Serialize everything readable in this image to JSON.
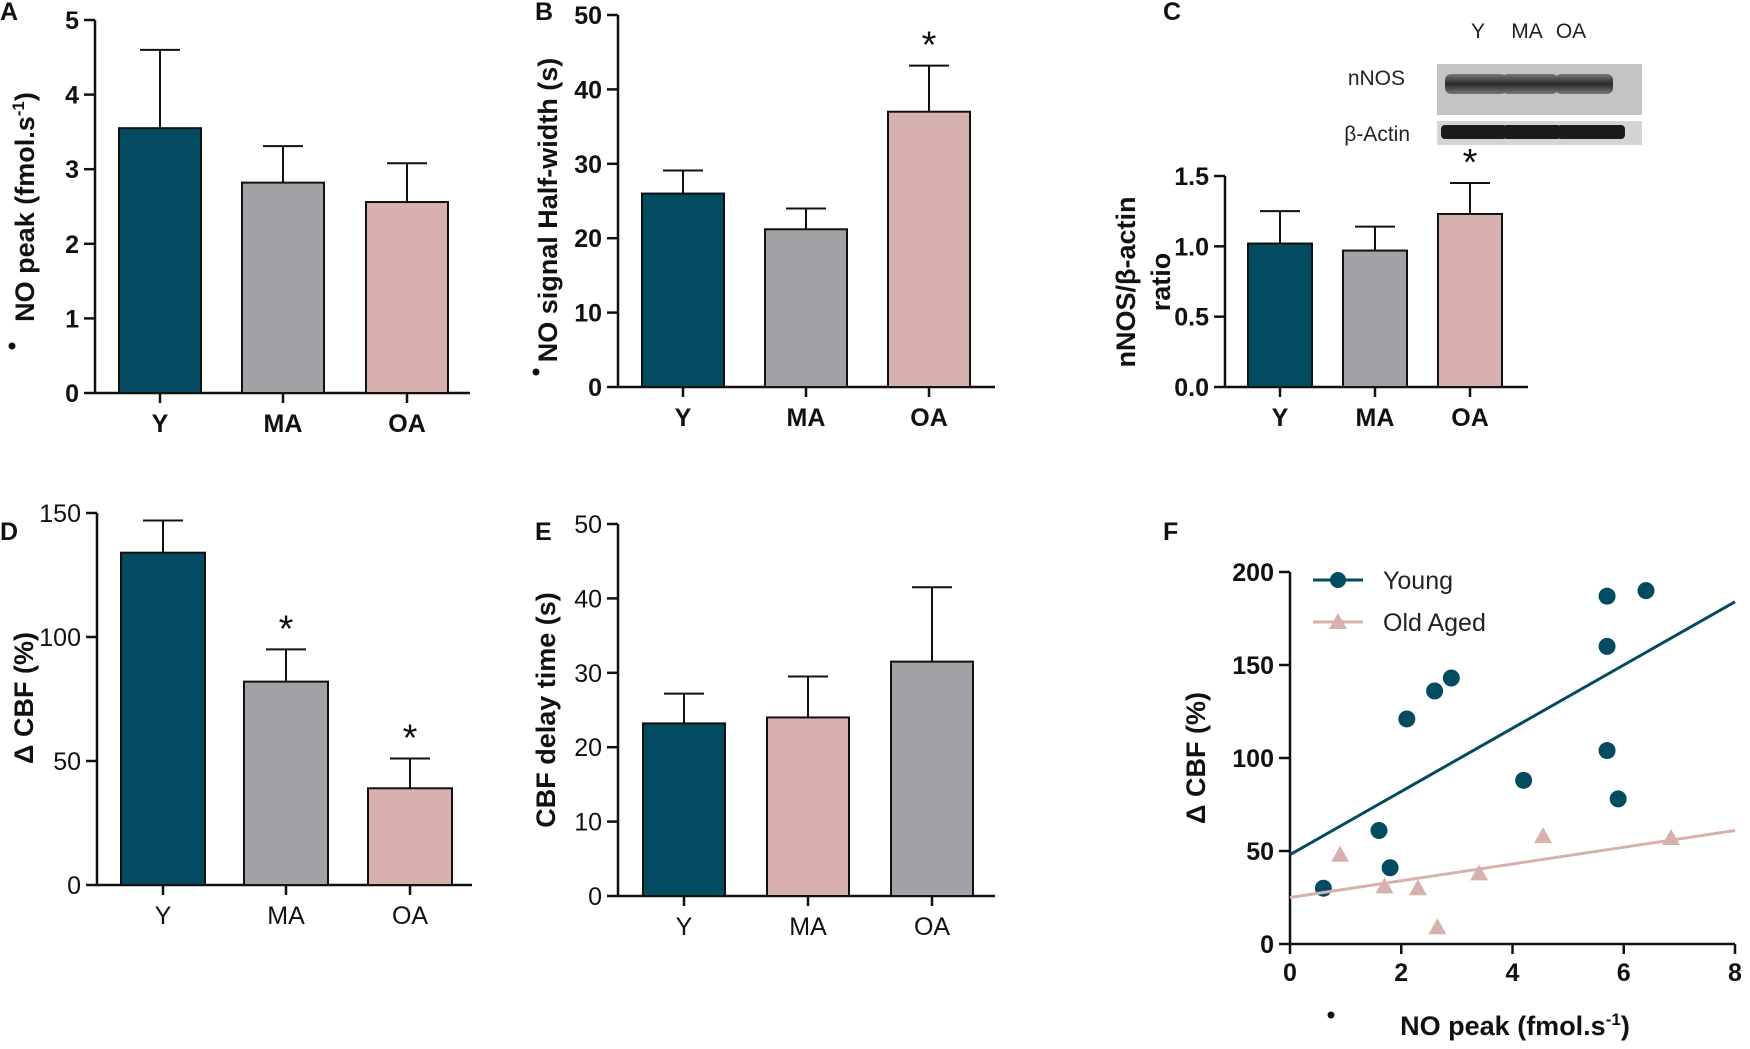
{
  "colors": {
    "young": "#034b61",
    "middle": "#a2a2a6",
    "old": "#d8b0ae",
    "axis": "#111111"
  },
  "chart_data": [
    {
      "panel": "A",
      "type": "bar",
      "ylabel": "NO peak (fmol.s",
      "ylabel_sup": "-1",
      "ylabel_end": ")",
      "ylim": [
        0,
        5
      ],
      "yticks": [
        "0",
        "1",
        "2",
        "3",
        "4",
        "5"
      ],
      "categories": [
        "Y",
        "MA",
        "OA"
      ],
      "values": [
        3.55,
        2.82,
        2.56
      ],
      "errors": [
        1.05,
        0.49,
        0.52
      ],
      "colorKeys": [
        "young",
        "middle",
        "old"
      ],
      "stars": [
        false,
        false,
        false
      ]
    },
    {
      "panel": "B",
      "type": "bar",
      "ylabel": "NO signal Half-width (s)",
      "ylim": [
        0,
        50
      ],
      "yticks": [
        "0",
        "10",
        "20",
        "30",
        "40",
        "50"
      ],
      "categories": [
        "Y",
        "MA",
        "OA"
      ],
      "values": [
        26,
        21.2,
        37
      ],
      "errors": [
        3.1,
        2.8,
        6.2
      ],
      "colorKeys": [
        "young",
        "middle",
        "old"
      ],
      "stars": [
        false,
        false,
        true
      ],
      "star_text": "*"
    },
    {
      "panel": "C",
      "type": "bar",
      "ylabel_line1": "nNOS/β-actin",
      "ylabel_line2": "ratio",
      "ylim": [
        0,
        1.5
      ],
      "yticks": [
        "0.0",
        "0.5",
        "1.0",
        "1.5"
      ],
      "categories": [
        "Y",
        "MA",
        "OA"
      ],
      "values": [
        1.02,
        0.97,
        1.23
      ],
      "errors": [
        0.23,
        0.17,
        0.22
      ],
      "colorKeys": [
        "young",
        "middle",
        "old"
      ],
      "stars": [
        false,
        false,
        true
      ],
      "star_text": "*",
      "blot": {
        "lanes": [
          "Y",
          "MA",
          "OA"
        ],
        "rows": [
          "nNOS",
          "β-Actin"
        ]
      }
    },
    {
      "panel": "D",
      "type": "bar",
      "ylabel": "Δ CBF (%)",
      "ylim": [
        0,
        150
      ],
      "yticks": [
        "0",
        "50",
        "100",
        "150"
      ],
      "categories": [
        "Y",
        "MA",
        "OA"
      ],
      "values": [
        134,
        82,
        39
      ],
      "errors": [
        13,
        13,
        12
      ],
      "colorKeys": [
        "young",
        "middle",
        "old"
      ],
      "stars": [
        false,
        true,
        true
      ],
      "star_text": "*"
    },
    {
      "panel": "E",
      "type": "bar",
      "ylabel": "CBF delay time (s)",
      "ylim": [
        0,
        50
      ],
      "yticks": [
        "0",
        "10",
        "20",
        "30",
        "40",
        "50"
      ],
      "categories": [
        "Y",
        "MA",
        "OA"
      ],
      "values": [
        23.2,
        24,
        31.5
      ],
      "errors": [
        4,
        5.5,
        10
      ],
      "colorKeys": [
        "young",
        "old",
        "middle"
      ],
      "stars": [
        false,
        false,
        false
      ]
    },
    {
      "panel": "F",
      "type": "scatter",
      "xlabel": "NO peak (fmol.s",
      "xlabel_sup": "-1",
      "xlabel_end": ")",
      "ylabel": "Δ CBF (%)",
      "xlim": [
        0,
        8
      ],
      "ylim": [
        0,
        200
      ],
      "xticks": [
        "0",
        "2",
        "4",
        "6",
        "8"
      ],
      "yticks": [
        "0",
        "50",
        "100",
        "150",
        "200"
      ],
      "series": [
        {
          "name": "Young",
          "colorKey": "young",
          "marker": "circle",
          "points": [
            [
              0.6,
              30
            ],
            [
              1.8,
              41
            ],
            [
              1.6,
              61
            ],
            [
              2.1,
              121
            ],
            [
              2.6,
              136
            ],
            [
              2.9,
              143
            ],
            [
              4.2,
              88
            ],
            [
              5.7,
              104
            ],
            [
              5.7,
              160
            ],
            [
              5.7,
              187
            ],
            [
              5.9,
              78
            ],
            [
              6.4,
              190
            ]
          ],
          "fit": [
            [
              0,
              48
            ],
            [
              8,
              184
            ]
          ]
        },
        {
          "name": "Old Aged",
          "colorKey": "old",
          "marker": "triangle",
          "points": [
            [
              0.9,
              48
            ],
            [
              1.7,
              31
            ],
            [
              2.3,
              30
            ],
            [
              2.65,
              9
            ],
            [
              3.4,
              38
            ],
            [
              4.55,
              58
            ],
            [
              6.85,
              57
            ]
          ],
          "fit": [
            [
              0,
              25
            ],
            [
              8,
              61
            ]
          ]
        }
      ]
    }
  ]
}
